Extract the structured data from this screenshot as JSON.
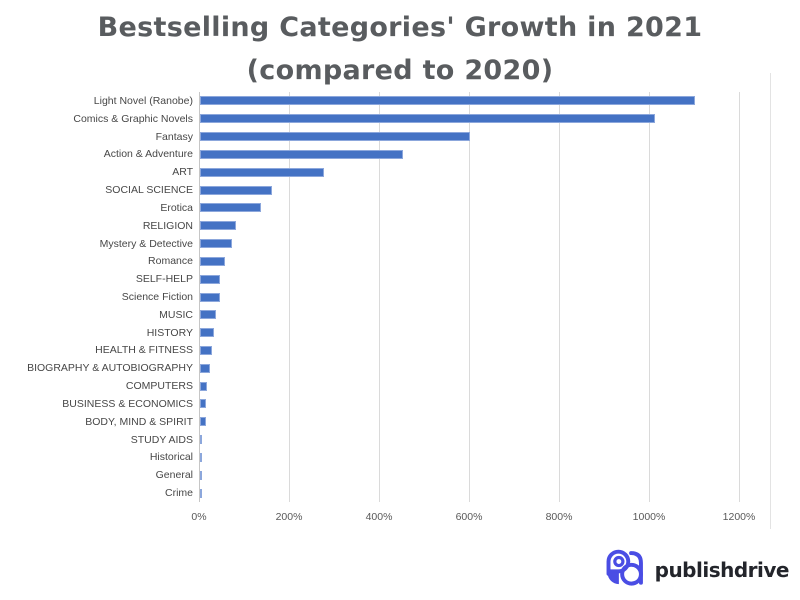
{
  "title": {
    "line1": "Bestselling Categories' Growth in 2021",
    "line2": "(compared to 2020)"
  },
  "chart_data": {
    "type": "bar",
    "orientation": "horizontal",
    "title": "Bestselling Categories' Growth in 2021 (compared to 2020)",
    "xlabel": "",
    "ylabel": "",
    "xlim": [
      0,
      1200
    ],
    "grid": true,
    "legend": false,
    "value_unit": "%",
    "x_ticks": [
      "0%",
      "200%",
      "400%",
      "600%",
      "800%",
      "1000%",
      "1200%"
    ],
    "x_tick_values": [
      0,
      200,
      400,
      600,
      800,
      1000,
      1200
    ],
    "categories": [
      "Light Novel (Ranobe)",
      "Comics & Graphic Novels",
      "Fantasy",
      "Action & Adventure",
      "ART",
      "SOCIAL SCIENCE",
      "Erotica",
      "RELIGION",
      "Mystery & Detective",
      "Romance",
      "SELF-HELP",
      "Science Fiction",
      "MUSIC",
      "HISTORY",
      "HEALTH & FITNESS",
      "BIOGRAPHY & AUTOBIOGRAPHY",
      "COMPUTERS",
      "BUSINESS & ECONOMICS",
      "BODY, MIND & SPIRIT",
      "STUDY AIDS",
      "Historical",
      "General",
      "Crime"
    ],
    "values": [
      1100,
      1010,
      600,
      450,
      275,
      160,
      135,
      80,
      70,
      55,
      45,
      45,
      35,
      30,
      27,
      23,
      16,
      14,
      14,
      5,
      4,
      1,
      0.5
    ],
    "bar_color": "#4472c4",
    "bar_border_color": "#8ca7dc",
    "gridline_color": "#dadada",
    "axis_line_color": "#c6c6c6"
  },
  "colors": {
    "title_text": "#595c5f",
    "category_text": "#474747",
    "tick_text": "#595959",
    "brand_mark": "#4a4de4",
    "brand_text": "#23252b"
  },
  "footer": {
    "brand": "publishdrive"
  }
}
